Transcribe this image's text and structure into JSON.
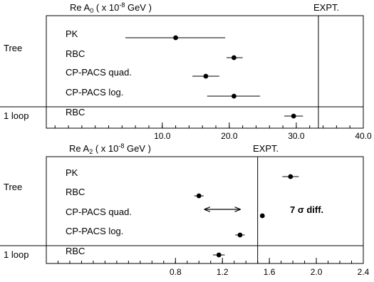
{
  "chart_data": [
    {
      "type": "scatter",
      "title": "Re A0 ( x 10^-8 GeV )",
      "title_parts": {
        "pre": "Re A",
        "sub": "0",
        "mid": " ( x 10",
        "sup": "-8",
        "post": " GeV )"
      },
      "expt_label": "EXPT.",
      "expt_value": 33.3,
      "xlim": [
        -7.3,
        40.0
      ],
      "xticks": [
        {
          "value": 10,
          "label": "10.0"
        },
        {
          "value": 20,
          "label": "20.0"
        },
        {
          "value": 30,
          "label": "30.0"
        },
        {
          "value": 40,
          "label": "40.0"
        }
      ],
      "minor_step": 2.0,
      "group_labels": [
        "Tree",
        "1 loop"
      ],
      "points": [
        {
          "label": "PK",
          "value": 12.0,
          "low": 4.5,
          "high": 19.4,
          "group": "Tree"
        },
        {
          "label": "RBC",
          "value": 20.7,
          "low": 19.6,
          "high": 22.0,
          "group": "Tree"
        },
        {
          "label": "CP-PACS quad.",
          "value": 16.5,
          "low": 14.5,
          "high": 18.5,
          "group": "Tree"
        },
        {
          "label": "CP-PACS log.",
          "value": 20.7,
          "low": 16.7,
          "high": 24.6,
          "group": "Tree"
        },
        {
          "label": "RBC",
          "value": 29.6,
          "low": 28.2,
          "high": 31.0,
          "group": "1 loop"
        }
      ]
    },
    {
      "type": "scatter",
      "title": "Re A2 ( x 10^-8 GeV )",
      "title_parts": {
        "pre": "Re A",
        "sub": "2",
        "mid": " ( x 10",
        "sup": "-8",
        "post": " GeV )"
      },
      "expt_label": "EXPT.",
      "expt_value": 1.5,
      "xlim": [
        -0.3,
        2.4
      ],
      "xticks": [
        {
          "value": 0.8,
          "label": "0.8"
        },
        {
          "value": 1.2,
          "label": "1.2"
        },
        {
          "value": 1.6,
          "label": "1.6"
        },
        {
          "value": 2.0,
          "label": "2.0"
        },
        {
          "value": 2.4,
          "label": "2.4"
        }
      ],
      "minor_step": 0.1,
      "group_labels": [
        "Tree",
        "1 loop"
      ],
      "points": [
        {
          "label": "PK",
          "value": 1.78,
          "low": 1.71,
          "high": 1.85,
          "group": "Tree"
        },
        {
          "label": "RBC",
          "value": 1.0,
          "low": 0.96,
          "high": 1.04,
          "group": "Tree"
        },
        {
          "label": "CP-PACS quad.",
          "value": 1.54,
          "low": 1.53,
          "high": 1.55,
          "group": "Tree"
        },
        {
          "label": "CP-PACS log.",
          "value": 1.35,
          "low": 1.31,
          "high": 1.39,
          "group": "Tree"
        },
        {
          "label": "RBC",
          "value": 1.17,
          "low": 1.12,
          "high": 1.22,
          "group": "1 loop"
        }
      ],
      "annotation": {
        "text": "7 σ diff.",
        "arrow_from": 1.05,
        "arrow_to": 1.35
      }
    }
  ]
}
